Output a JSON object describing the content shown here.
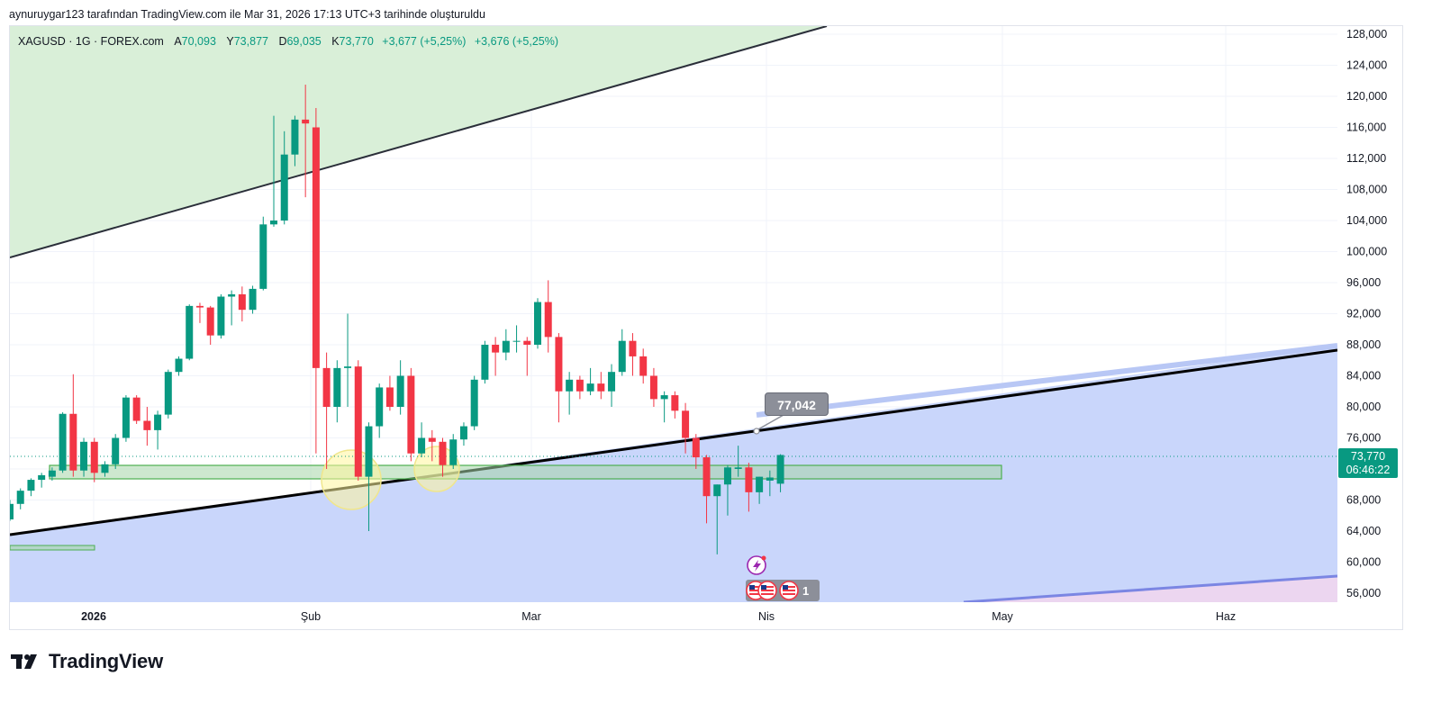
{
  "header": {
    "caption": "aynuruygar123 tarafından TradingView.com ile Mar 31, 2026 17:13 UTC+3 tarihinde oluşturuldu"
  },
  "legend": {
    "symbol": "XAGUSD · 1G · FOREX.com",
    "open_label": "A",
    "open": "70,093",
    "high_label": "Y",
    "high": "73,877",
    "low_label": "D",
    "low": "69,035",
    "close_label": "K",
    "close": "73,770",
    "change": "+3,677 (+5,25%)",
    "change2": "+3,676 (+5,25%)"
  },
  "price_tag": {
    "price": "73,770",
    "countdown": "06:46:22"
  },
  "callout": {
    "value": "77,042"
  },
  "events": {
    "count_badge": "1"
  },
  "brand": {
    "name": "TradingView"
  },
  "colors": {
    "up": "#089981",
    "down": "#f23645",
    "trend_line": "#000000",
    "zone_fill": "#c9d6fb",
    "top_zone_fill": "#d9efd8",
    "box_stroke": "#4caf50"
  },
  "chart_data": {
    "type": "candlestick",
    "y_axis": {
      "range": [
        54000,
        130000
      ],
      "ticks": [
        "128,000",
        "124,000",
        "120,000",
        "116,000",
        "112,000",
        "108,000",
        "104,000",
        "100,000",
        "96,000",
        "92,000",
        "88,000",
        "84,000",
        "80,000",
        "76,000",
        "72,000",
        "68,000",
        "64,000",
        "60,000",
        "56,000"
      ]
    },
    "x_axis": {
      "labels": [
        "2026",
        "Şub",
        "Mar",
        "Nis",
        "May",
        "Haz"
      ]
    },
    "annotations": {
      "trend_value": "77,042",
      "support_zone": [
        71.5,
        72.8
      ]
    },
    "candles": [
      {
        "o": 65.5,
        "h": 68.0,
        "l": 65.3,
        "c": 67.5
      },
      {
        "o": 67.5,
        "h": 69.5,
        "l": 66.8,
        "c": 69.2
      },
      {
        "o": 69.2,
        "h": 70.8,
        "l": 68.5,
        "c": 70.6
      },
      {
        "o": 70.6,
        "h": 71.5,
        "l": 69.6,
        "c": 71.2
      },
      {
        "o": 71.0,
        "h": 72.2,
        "l": 70.5,
        "c": 71.8
      },
      {
        "o": 71.8,
        "h": 79.3,
        "l": 71.5,
        "c": 79.1
      },
      {
        "o": 79.1,
        "h": 84.2,
        "l": 71.0,
        "c": 71.8
      },
      {
        "o": 71.8,
        "h": 76.0,
        "l": 71.0,
        "c": 75.5
      },
      {
        "o": 75.5,
        "h": 76.0,
        "l": 70.3,
        "c": 71.5
      },
      {
        "o": 71.5,
        "h": 73.0,
        "l": 71.0,
        "c": 72.6
      },
      {
        "o": 72.6,
        "h": 76.5,
        "l": 72.0,
        "c": 76.0
      },
      {
        "o": 76.0,
        "h": 81.5,
        "l": 75.5,
        "c": 81.2
      },
      {
        "o": 81.2,
        "h": 81.5,
        "l": 77.8,
        "c": 78.2
      },
      {
        "o": 78.2,
        "h": 80.0,
        "l": 75.0,
        "c": 77.0
      },
      {
        "o": 77.0,
        "h": 79.5,
        "l": 74.5,
        "c": 79.0
      },
      {
        "o": 79.0,
        "h": 84.8,
        "l": 78.5,
        "c": 84.5
      },
      {
        "o": 84.5,
        "h": 86.5,
        "l": 84.0,
        "c": 86.2
      },
      {
        "o": 86.2,
        "h": 93.2,
        "l": 86.0,
        "c": 93.0
      },
      {
        "o": 93.0,
        "h": 93.4,
        "l": 90.8,
        "c": 92.8
      },
      {
        "o": 92.8,
        "h": 93.0,
        "l": 88.0,
        "c": 89.2
      },
      {
        "o": 89.2,
        "h": 94.5,
        "l": 88.8,
        "c": 94.2
      },
      {
        "o": 94.2,
        "h": 95.0,
        "l": 90.5,
        "c": 94.5
      },
      {
        "o": 94.5,
        "h": 95.5,
        "l": 91.0,
        "c": 92.5
      },
      {
        "o": 92.5,
        "h": 95.6,
        "l": 92.0,
        "c": 95.2
      },
      {
        "o": 95.2,
        "h": 104.5,
        "l": 95.0,
        "c": 103.5
      },
      {
        "o": 103.5,
        "h": 117.5,
        "l": 103.2,
        "c": 104.0
      },
      {
        "o": 104.0,
        "h": 115.5,
        "l": 103.5,
        "c": 112.5
      },
      {
        "o": 112.5,
        "h": 117.5,
        "l": 111.0,
        "c": 117.0
      },
      {
        "o": 117.0,
        "h": 121.5,
        "l": 107.0,
        "c": 116.5
      },
      {
        "o": 116.0,
        "h": 118.5,
        "l": 74.0,
        "c": 85.0
      },
      {
        "o": 85.0,
        "h": 87.0,
        "l": 72.0,
        "c": 80.0
      },
      {
        "o": 80.0,
        "h": 86.0,
        "l": 78.0,
        "c": 85.0
      },
      {
        "o": 85.0,
        "h": 92.0,
        "l": 80.0,
        "c": 85.2
      },
      {
        "o": 85.2,
        "h": 86.0,
        "l": 70.5,
        "c": 71.0
      },
      {
        "o": 71.0,
        "h": 78.0,
        "l": 64.0,
        "c": 77.5
      },
      {
        "o": 77.5,
        "h": 83.0,
        "l": 76.0,
        "c": 82.5
      },
      {
        "o": 82.5,
        "h": 84.0,
        "l": 79.5,
        "c": 80.0
      },
      {
        "o": 80.0,
        "h": 86.0,
        "l": 79.0,
        "c": 84.0
      },
      {
        "o": 84.0,
        "h": 85.0,
        "l": 73.0,
        "c": 74.0
      },
      {
        "o": 74.0,
        "h": 78.0,
        "l": 73.5,
        "c": 76.0
      },
      {
        "o": 76.0,
        "h": 77.0,
        "l": 73.0,
        "c": 75.5
      },
      {
        "o": 75.5,
        "h": 76.0,
        "l": 71.0,
        "c": 72.5
      },
      {
        "o": 72.5,
        "h": 76.5,
        "l": 72.0,
        "c": 75.8
      },
      {
        "o": 75.8,
        "h": 78.0,
        "l": 75.0,
        "c": 77.5
      },
      {
        "o": 77.5,
        "h": 84.0,
        "l": 77.0,
        "c": 83.5
      },
      {
        "o": 83.5,
        "h": 88.5,
        "l": 83.0,
        "c": 88.0
      },
      {
        "o": 88.0,
        "h": 89.0,
        "l": 84.0,
        "c": 87.0
      },
      {
        "o": 87.0,
        "h": 90.0,
        "l": 86.0,
        "c": 88.5
      },
      {
        "o": 88.5,
        "h": 90.5,
        "l": 87.0,
        "c": 88.5
      },
      {
        "o": 88.5,
        "h": 89.0,
        "l": 84.0,
        "c": 88.0
      },
      {
        "o": 88.0,
        "h": 94.0,
        "l": 87.5,
        "c": 93.5
      },
      {
        "o": 93.5,
        "h": 96.3,
        "l": 87.0,
        "c": 89.0
      },
      {
        "o": 89.0,
        "h": 89.5,
        "l": 78.0,
        "c": 82.0
      },
      {
        "o": 82.0,
        "h": 84.5,
        "l": 79.0,
        "c": 83.5
      },
      {
        "o": 83.5,
        "h": 84.0,
        "l": 81.0,
        "c": 82.0
      },
      {
        "o": 82.0,
        "h": 85.0,
        "l": 81.5,
        "c": 83.0
      },
      {
        "o": 83.0,
        "h": 84.5,
        "l": 81.0,
        "c": 82.0
      },
      {
        "o": 82.0,
        "h": 85.5,
        "l": 80.0,
        "c": 84.5
      },
      {
        "o": 84.5,
        "h": 90.0,
        "l": 84.0,
        "c": 88.5
      },
      {
        "o": 88.5,
        "h": 89.5,
        "l": 84.0,
        "c": 86.5
      },
      {
        "o": 86.5,
        "h": 87.5,
        "l": 83.0,
        "c": 84.0
      },
      {
        "o": 84.0,
        "h": 85.0,
        "l": 80.0,
        "c": 81.0
      },
      {
        "o": 81.0,
        "h": 82.0,
        "l": 78.0,
        "c": 81.5
      },
      {
        "o": 81.5,
        "h": 82.0,
        "l": 78.5,
        "c": 79.5
      },
      {
        "o": 79.5,
        "h": 80.5,
        "l": 74.0,
        "c": 76.0
      },
      {
        "o": 76.0,
        "h": 76.5,
        "l": 72.0,
        "c": 73.5
      },
      {
        "o": 73.5,
        "h": 73.8,
        "l": 65.0,
        "c": 68.5
      },
      {
        "o": 68.5,
        "h": 70.0,
        "l": 61.0,
        "c": 70.0
      },
      {
        "o": 70.0,
        "h": 72.5,
        "l": 66.0,
        "c": 72.2
      },
      {
        "o": 72.0,
        "h": 75.0,
        "l": 71.0,
        "c": 72.2
      },
      {
        "o": 72.2,
        "h": 72.8,
        "l": 66.5,
        "c": 69.0
      },
      {
        "o": 69.0,
        "h": 71.0,
        "l": 67.5,
        "c": 71.0
      },
      {
        "o": 70.5,
        "h": 71.8,
        "l": 68.5,
        "c": 70.9
      },
      {
        "o": 70.1,
        "h": 73.9,
        "l": 69.0,
        "c": 73.8
      }
    ]
  }
}
